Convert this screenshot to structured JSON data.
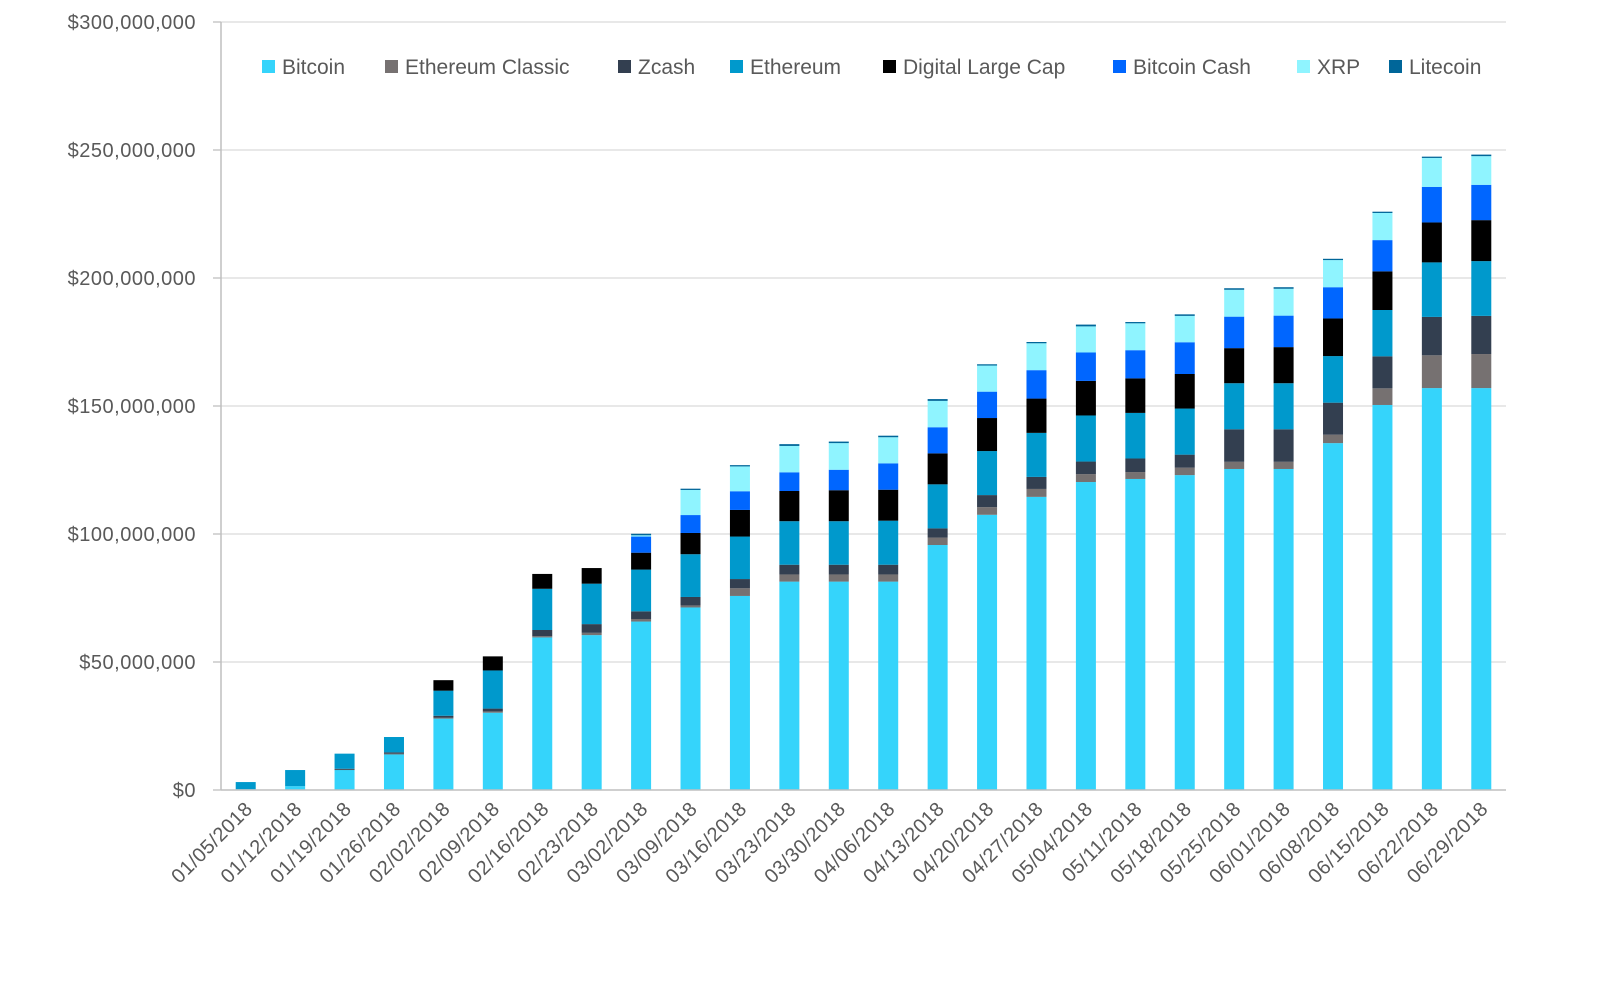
{
  "chart_data": {
    "type": "bar",
    "stacked": true,
    "title": "",
    "xlabel": "",
    "ylabel": "",
    "ylim": [
      0,
      300000000
    ],
    "yticks": [
      0,
      50000000,
      100000000,
      150000000,
      200000000,
      250000000,
      300000000
    ],
    "ytick_labels": [
      "$0",
      "$50,000,000",
      "$100,000,000",
      "$150,000,000",
      "$200,000,000",
      "$250,000,000",
      "$300,000,000"
    ],
    "grid": true,
    "legend_position": "top",
    "categories": [
      "01/05/2018",
      "01/12/2018",
      "01/19/2018",
      "01/26/2018",
      "02/02/2018",
      "02/09/2018",
      "02/16/2018",
      "02/23/2018",
      "03/02/2018",
      "03/09/2018",
      "03/16/2018",
      "03/23/2018",
      "03/30/2018",
      "04/06/2018",
      "04/13/2018",
      "04/20/2018",
      "04/27/2018",
      "05/04/2018",
      "05/11/2018",
      "05/18/2018",
      "05/25/2018",
      "06/01/2018",
      "06/08/2018",
      "06/15/2018",
      "06/22/2018",
      "06/29/2018"
    ],
    "series": [
      {
        "name": "Bitcoin",
        "color": "#35d4fb",
        "values": [
          300000.0,
          1500000.0,
          8000000.0,
          14000000.0,
          27900000.0,
          30200000.0,
          59600000.0,
          60500000.0,
          65800000.0,
          71300000.0,
          75800000.0,
          81400000.0,
          81400000.0,
          81400000.0,
          95700000.0,
          107500000.0,
          114500000.0,
          120300000.0,
          121500000.0,
          123000000.0,
          125400000.0,
          125400000.0,
          135500000.0,
          150400000.0,
          157000000.0,
          157000000.0
        ]
      },
      {
        "name": "Ethereum Classic",
        "color": "#767171",
        "values": [
          0,
          0,
          100000.0,
          200000.0,
          300000.0,
          500000.0,
          500000.0,
          900000.0,
          1000000.0,
          800000.0,
          3000000.0,
          2800000.0,
          2800000.0,
          2800000.0,
          2900000.0,
          3000000.0,
          3100000.0,
          3100000.0,
          2700000.0,
          2900000.0,
          2800000.0,
          2800000.0,
          3300000.0,
          6500000.0,
          12800000.0,
          13300000.0
        ]
      },
      {
        "name": "Zcash",
        "color": "#333f50",
        "values": [
          0,
          0,
          200000.0,
          500000.0,
          800000.0,
          1100000.0,
          2400000.0,
          3400000.0,
          3000000.0,
          3300000.0,
          3600000.0,
          3800000.0,
          3800000.0,
          3800000.0,
          3600000.0,
          4700000.0,
          4700000.0,
          4900000.0,
          5300000.0,
          5100000.0,
          12700000.0,
          12700000.0,
          12500000.0,
          12500000.0,
          15000000.0,
          14900000.0
        ]
      },
      {
        "name": "Ethereum",
        "color": "#0099cc",
        "values": [
          2800000.0,
          6300000.0,
          5900000.0,
          6000000.0,
          9800000.0,
          14900000.0,
          16100000.0,
          15800000.0,
          16300000.0,
          16700000.0,
          16600000.0,
          17000000.0,
          17000000.0,
          17200000.0,
          17200000.0,
          17200000.0,
          17200000.0,
          18000000.0,
          17800000.0,
          18000000.0,
          18000000.0,
          18000000.0,
          18200000.0,
          18100000.0,
          21300000.0,
          21400000.0
        ]
      },
      {
        "name": "Digital Large Cap",
        "color": "#000000",
        "values": [
          0,
          0,
          0,
          0,
          4100000.0,
          5500000.0,
          5800000.0,
          6100000.0,
          6600000.0,
          8300000.0,
          10400000.0,
          11800000.0,
          12100000.0,
          12100000.0,
          12100000.0,
          12900000.0,
          13400000.0,
          13500000.0,
          13500000.0,
          13500000.0,
          13700000.0,
          14100000.0,
          14700000.0,
          15100000.0,
          15600000.0,
          16000000.0
        ]
      },
      {
        "name": "Bitcoin Cash",
        "color": "#0066ff",
        "values": [
          0,
          0,
          0,
          0,
          0,
          0,
          0,
          0,
          6300000.0,
          7000000.0,
          7300000.0,
          7300000.0,
          8000000.0,
          10300000.0,
          10200000.0,
          10300000.0,
          11100000.0,
          11100000.0,
          11000000.0,
          12400000.0,
          12300000.0,
          12300000.0,
          12200000.0,
          12200000.0,
          13900000.0,
          13800000.0
        ]
      },
      {
        "name": "XRP",
        "color": "#8ff4ff",
        "values": [
          0,
          0,
          0,
          0,
          0,
          0,
          0,
          0,
          500000.0,
          9800000.0,
          9700000.0,
          10300000.0,
          10400000.0,
          10200000.0,
          10300000.0,
          10200000.0,
          10500000.0,
          10200000.0,
          10500000.0,
          10300000.0,
          10500000.0,
          10500000.0,
          10600000.0,
          10600000.0,
          11300000.0,
          11200000.0
        ]
      },
      {
        "name": "Litecoin",
        "color": "#006699",
        "values": [
          0,
          0,
          0,
          0,
          0,
          0,
          0,
          0,
          600000.0,
          500000.0,
          500000.0,
          700000.0,
          600000.0,
          600000.0,
          700000.0,
          500000.0,
          500000.0,
          700000.0,
          500000.0,
          600000.0,
          600000.0,
          600000.0,
          500000.0,
          500000.0,
          500000.0,
          600000.0
        ]
      }
    ]
  }
}
